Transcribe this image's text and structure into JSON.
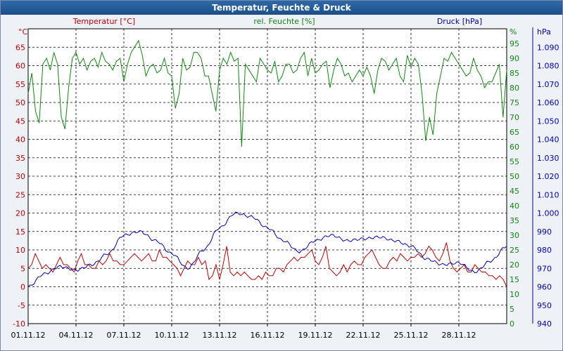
{
  "window": {
    "title": "Temperatur, Feuchte & Druck"
  },
  "chart_data": {
    "type": "line",
    "title": "Temperatur, Feuchte & Druck",
    "xlabel": "",
    "x_ticks": [
      "01.11.12",
      "04.11.12",
      "07.11.12",
      "10.11.12",
      "13.11.12",
      "16.11.12",
      "19.11.12",
      "22.11.12",
      "25.11.12",
      "28.11.12"
    ],
    "xlim": [
      "01.11.12",
      "01.12.12"
    ],
    "grid": true,
    "axes": {
      "temperature": {
        "unit": "°C",
        "label": "Temperatur [°C]",
        "ylim": [
          -10,
          70
        ],
        "ticks": [
          -10,
          -5,
          0,
          5,
          10,
          15,
          20,
          25,
          30,
          35,
          40,
          45,
          50,
          55,
          60,
          65
        ],
        "color": "#c00000"
      },
      "humidity": {
        "unit": "%",
        "label": "rel. Feuchte [%]",
        "ylim": [
          0,
          100
        ],
        "ticks": [
          0,
          5,
          10,
          15,
          20,
          25,
          30,
          35,
          40,
          45,
          50,
          55,
          60,
          65,
          70,
          75,
          80,
          85,
          90,
          95
        ],
        "color": "#118811"
      },
      "pressure": {
        "unit": "hPa",
        "label": "Druck [hPa]",
        "ylim": [
          940,
          1100
        ],
        "ticks": [
          "940",
          "950",
          "960",
          "970",
          "980",
          "990",
          "1.000",
          "1.010",
          "1.020",
          "1.030",
          "1.040",
          "1.050",
          "1.060",
          "1.070",
          "1.080",
          "1.090"
        ],
        "color": "#0000bb"
      }
    },
    "series": [
      {
        "name": "Temperatur [°C]",
        "axis": "temperature",
        "color": "#c00000",
        "x": [
          "01.11.12",
          "02.11.12",
          "03.11.12",
          "04.11.12",
          "05.11.12",
          "06.11.12",
          "07.11.12",
          "08.11.12",
          "09.11.12",
          "10.11.12",
          "11.11.12",
          "12.11.12",
          "13.11.12",
          "14.11.12",
          "15.11.12",
          "16.11.12",
          "17.11.12",
          "18.11.12",
          "19.11.12",
          "20.11.12",
          "21.11.12",
          "22.11.12",
          "23.11.12",
          "24.11.12",
          "25.11.12",
          "26.11.12",
          "27.11.12",
          "28.11.12",
          "29.11.12",
          "30.11.12",
          "01.12.12"
        ],
        "values": [
          6,
          8,
          7,
          5,
          9,
          6,
          8,
          8,
          7,
          8,
          9,
          4,
          6,
          3,
          5,
          3,
          3,
          4,
          7,
          9,
          5,
          5,
          7,
          7,
          9,
          8,
          6,
          5,
          4,
          3,
          0
        ]
      },
      {
        "name": "rel. Feuchte [%]",
        "axis": "humidity",
        "color": "#118811",
        "x": [
          "01.11.12",
          "02.11.12",
          "03.11.12",
          "04.11.12",
          "05.11.12",
          "06.11.12",
          "07.11.12",
          "08.11.12",
          "09.11.12",
          "10.11.12",
          "11.11.12",
          "12.11.12",
          "13.11.12",
          "14.11.12",
          "15.11.12",
          "16.11.12",
          "17.11.12",
          "18.11.12",
          "19.11.12",
          "20.11.12",
          "21.11.12",
          "22.11.12",
          "23.11.12",
          "24.11.12",
          "25.11.12",
          "26.11.12",
          "27.11.12",
          "28.11.12",
          "29.11.12",
          "30.11.12",
          "01.12.12"
        ],
        "values": [
          80,
          88,
          90,
          89,
          87,
          86,
          90,
          87,
          85,
          84,
          90,
          86,
          85,
          86,
          80,
          84,
          88,
          86,
          87,
          86,
          90,
          84,
          83,
          90,
          88,
          84,
          82,
          91,
          86,
          84,
          86
        ]
      },
      {
        "name": "Druck [hPa]",
        "axis": "pressure",
        "color": "#0000bb",
        "x": [
          "01.11.12",
          "02.11.12",
          "03.11.12",
          "04.11.12",
          "05.11.12",
          "06.11.12",
          "07.11.12",
          "08.11.12",
          "09.11.12",
          "10.11.12",
          "11.11.12",
          "12.11.12",
          "13.11.12",
          "14.11.12",
          "15.11.12",
          "16.11.12",
          "17.11.12",
          "18.11.12",
          "19.11.12",
          "20.11.12",
          "21.11.12",
          "22.11.12",
          "23.11.12",
          "24.11.12",
          "25.11.12",
          "26.11.12",
          "27.11.12",
          "28.11.12",
          "29.11.12",
          "30.11.12",
          "01.12.12"
        ],
        "values": [
          960,
          967,
          971,
          969,
          972,
          978,
          988,
          990,
          985,
          978,
          970,
          980,
          992,
          1000,
          998,
          992,
          985,
          979,
          985,
          988,
          985,
          986,
          987,
          985,
          982,
          975,
          972,
          973,
          968,
          974,
          982
        ]
      }
    ],
    "detail": {
      "temperature": [
        5,
        6,
        9,
        7,
        5,
        6,
        5,
        4,
        6,
        8,
        6,
        6,
        5,
        4,
        7,
        9,
        6,
        6,
        5,
        5,
        7,
        6,
        7,
        9,
        7,
        7,
        6,
        6,
        7,
        8,
        9,
        8,
        7,
        8,
        9,
        7,
        7,
        10,
        8,
        8,
        7,
        6,
        5,
        3,
        5,
        7,
        6,
        6,
        8,
        6,
        7,
        2,
        3,
        6,
        2,
        6,
        11,
        4,
        3,
        4,
        3,
        4,
        3,
        2,
        2,
        3,
        2,
        4,
        3,
        3,
        5,
        5,
        4,
        6,
        7,
        8,
        7,
        8,
        8,
        9,
        10,
        7,
        6,
        8,
        11,
        5,
        4,
        3,
        4,
        6,
        4,
        6,
        7,
        6,
        6,
        8,
        9,
        10,
        8,
        6,
        5,
        5,
        7,
        8,
        7,
        9,
        8,
        7,
        8,
        8,
        9,
        8,
        9,
        11,
        10,
        8,
        7,
        9,
        12,
        7,
        5,
        4,
        5,
        6,
        4,
        4,
        6,
        5,
        4,
        4,
        3,
        3,
        2,
        3,
        2,
        0
      ],
      "humidity": [
        78,
        85,
        72,
        68,
        88,
        90,
        86,
        92,
        88,
        70,
        66,
        80,
        90,
        92,
        88,
        90,
        86,
        89,
        90,
        87,
        92,
        89,
        88,
        86,
        89,
        90,
        82,
        88,
        92,
        94,
        96,
        91,
        84,
        87,
        88,
        85,
        86,
        90,
        85,
        84,
        73,
        78,
        90,
        86,
        87,
        92,
        92,
        90,
        84,
        84,
        78,
        72,
        86,
        90,
        88,
        92,
        89,
        90,
        60,
        88,
        86,
        84,
        82,
        90,
        88,
        86,
        85,
        89,
        82,
        84,
        88,
        88,
        85,
        86,
        90,
        92,
        84,
        90,
        85,
        86,
        88,
        89,
        80,
        86,
        90,
        88,
        84,
        85,
        82,
        84,
        86,
        84,
        87,
        84,
        78,
        86,
        90,
        89,
        86,
        88,
        90,
        84,
        82,
        91,
        87,
        90,
        88,
        78,
        62,
        70,
        64,
        78,
        84,
        90,
        89,
        92,
        90,
        88,
        86,
        84,
        85,
        90,
        86,
        84,
        80,
        82,
        82,
        85,
        88,
        70,
        86
      ]
    }
  }
}
